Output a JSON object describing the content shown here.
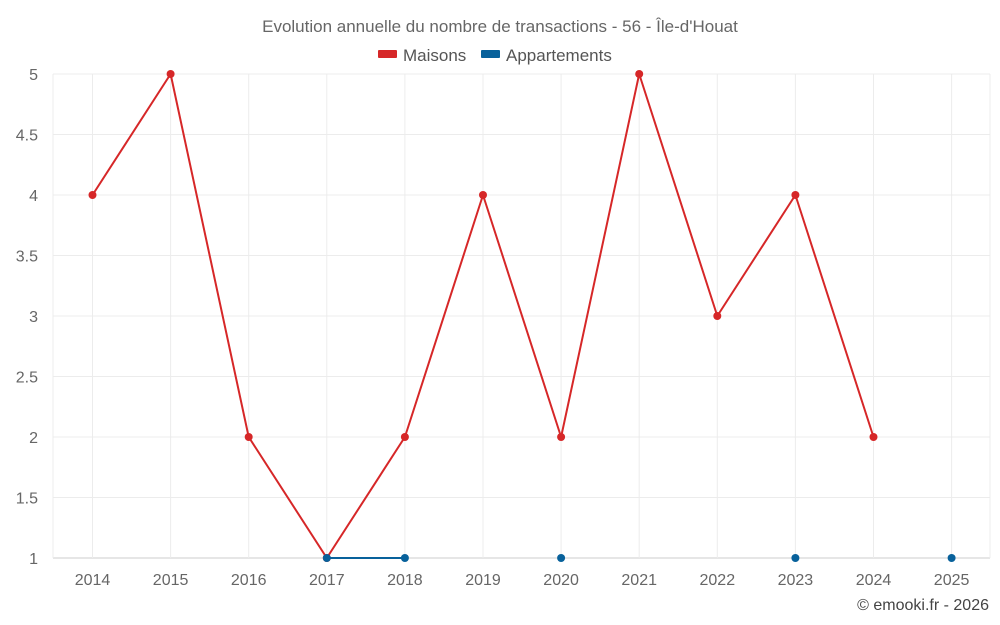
{
  "chart_data": {
    "type": "line",
    "title": "Evolution annuelle du nombre de transactions - 56 - Île-d'Houat",
    "x": [
      "2014",
      "2015",
      "2016",
      "2017",
      "2018",
      "2019",
      "2020",
      "2021",
      "2022",
      "2023",
      "2024",
      "2025"
    ],
    "yticks": [
      "1",
      "1.5",
      "2",
      "2.5",
      "3",
      "3.5",
      "4",
      "4.5",
      "5"
    ],
    "ylim": [
      1,
      5
    ],
    "grid": true,
    "legend_position": "top-center",
    "series": [
      {
        "name": "Maisons",
        "color": "#d62728",
        "values": [
          4,
          5,
          2,
          1,
          2,
          4,
          2,
          5,
          3,
          4,
          2,
          null
        ]
      },
      {
        "name": "Appartements",
        "color": "#08619b",
        "values": [
          null,
          null,
          null,
          1,
          1,
          null,
          1,
          null,
          null,
          1,
          null,
          1
        ]
      }
    ],
    "credit": "© emooki.fr - 2026"
  }
}
